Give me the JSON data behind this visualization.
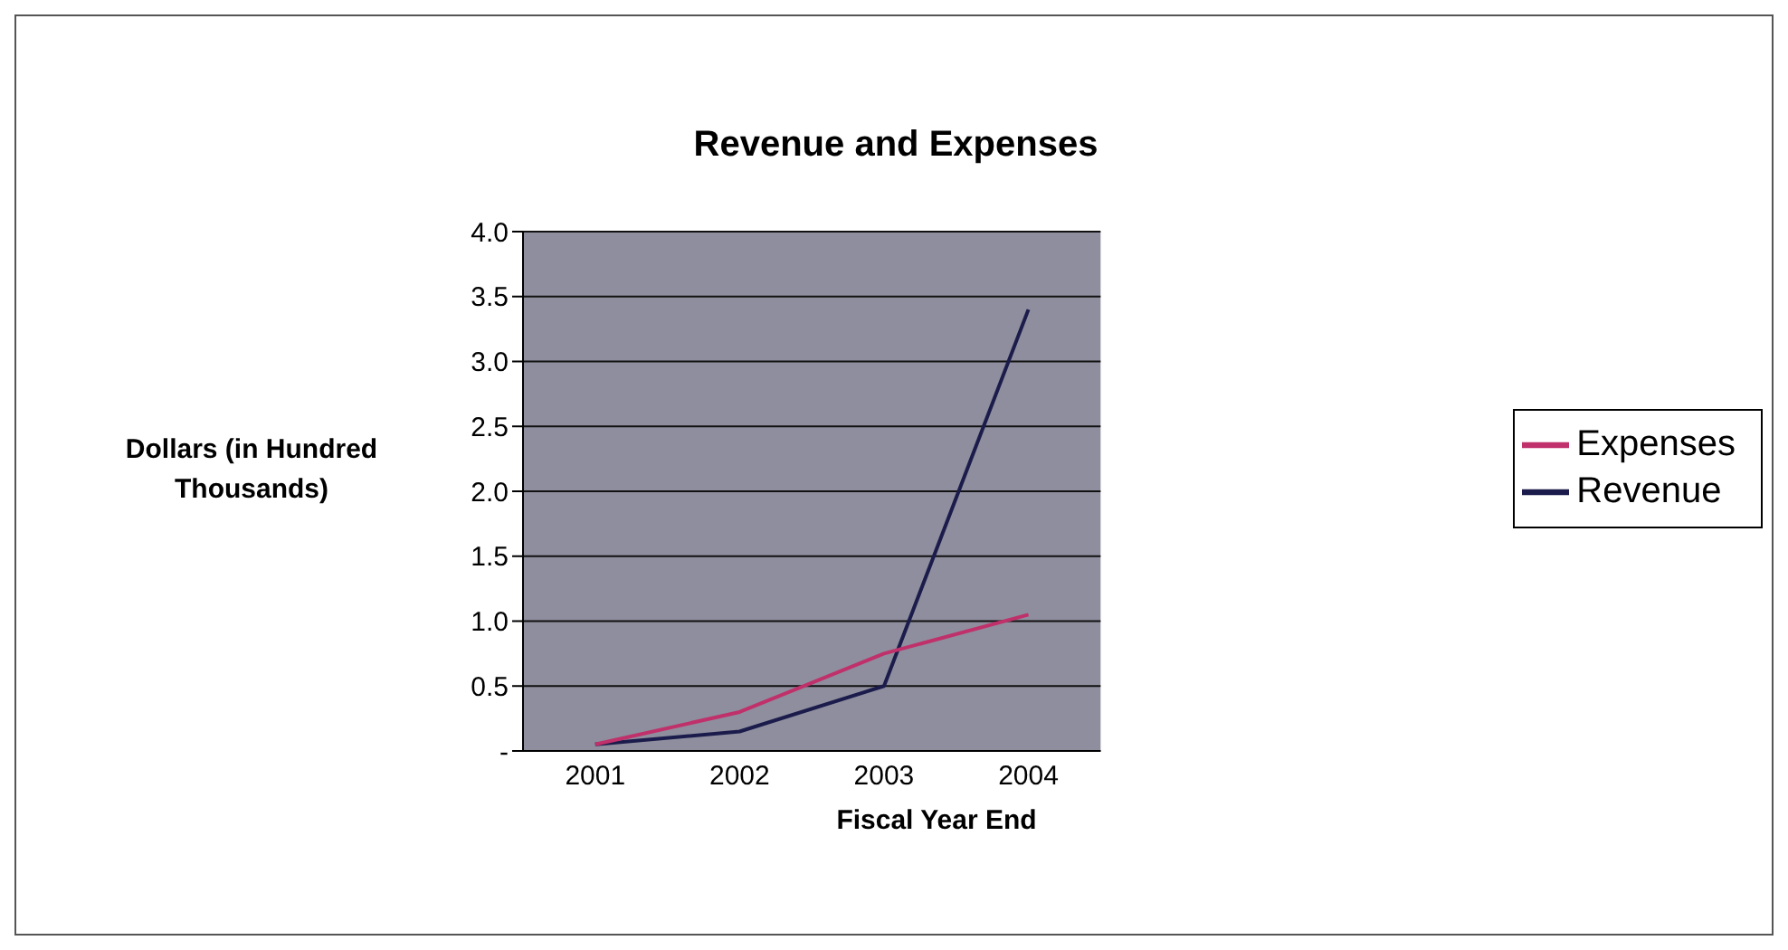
{
  "chart_data": {
    "type": "line",
    "title": "Revenue and Expenses",
    "xlabel": "Fiscal Year End",
    "ylabel": "Dollars (in Hundred Thousands)",
    "categories": [
      "2001",
      "2002",
      "2003",
      "2004"
    ],
    "series": [
      {
        "name": "Revenue",
        "color": "#1c1c4c",
        "values": [
          0.05,
          0.15,
          0.5,
          3.4
        ]
      },
      {
        "name": "Expenses",
        "color": "#c0306a",
        "values": [
          0.05,
          0.3,
          0.75,
          1.05
        ]
      }
    ],
    "ylim": [
      0,
      4
    ],
    "yticks": [
      {
        "value": 0,
        "label": "-"
      },
      {
        "value": 0.5,
        "label": "0.5"
      },
      {
        "value": 1,
        "label": "1.0"
      },
      {
        "value": 1.5,
        "label": "1.5"
      },
      {
        "value": 2,
        "label": "2.0"
      },
      {
        "value": 2.5,
        "label": "2.5"
      },
      {
        "value": 3,
        "label": "3.0"
      },
      {
        "value": 3.5,
        "label": "3.5"
      },
      {
        "value": 4,
        "label": "4.0"
      }
    ],
    "grid": "y",
    "legend": "right",
    "marker": "none",
    "line_style": "solid"
  }
}
